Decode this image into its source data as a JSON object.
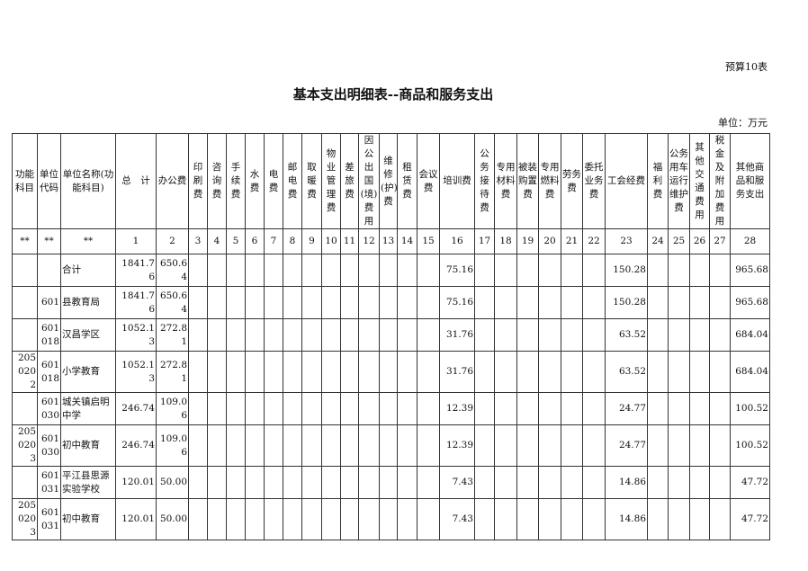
{
  "doc": {
    "tag": "预算10表",
    "title": "基本支出明细表--商品和服务支出",
    "unit": "单位：万元"
  },
  "table": {
    "headers": [
      "功能科目",
      "单位代码",
      "单位名称(功能科目)",
      "总　计",
      "办公费",
      "印刷费",
      "咨询费",
      "手续费",
      "水费",
      "电费",
      "邮电费",
      "取暖费",
      "物业管理费",
      "差旅费",
      "因公出国(境)费用",
      "维修(护)费",
      "租赁费",
      "会议费",
      "培训费",
      "公务接待费",
      "专用材料费",
      "被装购置费",
      "专用燃料费",
      "劳务费",
      "委托业务费",
      "工会经费",
      "福利费",
      "公务用车运行维护费",
      "其他交通费用",
      "税金及附加费用",
      "其他商品和服务支出"
    ],
    "numbers": [
      "**",
      "**",
      "**",
      "1",
      "2",
      "3",
      "4",
      "5",
      "6",
      "7",
      "8",
      "9",
      "10",
      "11",
      "12",
      "13",
      "14",
      "15",
      "16",
      "17",
      "18",
      "19",
      "20",
      "21",
      "22",
      "23",
      "24",
      "25",
      "26",
      "27",
      "28"
    ],
    "rows": [
      {
        "func": "",
        "code": "",
        "name": "合计",
        "total": "1841.76",
        "office": "650.64",
        "training": "75.16",
        "union": "150.28",
        "other": "965.68"
      },
      {
        "func": "",
        "code": "601",
        "name": "县教育局",
        "total": "1841.76",
        "office": "650.64",
        "training": "75.16",
        "union": "150.28",
        "other": "965.68"
      },
      {
        "func": "",
        "code": "601018",
        "name": "汉昌学区",
        "total": "1052.13",
        "office": "272.81",
        "training": "31.76",
        "union": "63.52",
        "other": "684.04"
      },
      {
        "func": "2050202",
        "code": "601018",
        "name": "小学教育",
        "total": "1052.13",
        "office": "272.81",
        "training": "31.76",
        "union": "63.52",
        "other": "684.04"
      },
      {
        "func": "",
        "code": "601030",
        "name": "城关镇启明中学",
        "total": "246.74",
        "office": "109.06",
        "training": "12.39",
        "union": "24.77",
        "other": "100.52"
      },
      {
        "func": "2050203",
        "code": "601030",
        "name": "初中教育",
        "total": "246.74",
        "office": "109.06",
        "training": "12.39",
        "union": "24.77",
        "other": "100.52"
      },
      {
        "func": "",
        "code": "601031",
        "name": "平江县思源实验学校",
        "total": "120.01",
        "office": "50.00",
        "training": "7.43",
        "union": "14.86",
        "other": "47.72"
      },
      {
        "func": "2050203",
        "code": "601031",
        "name": "初中教育",
        "total": "120.01",
        "office": "50.00",
        "training": "7.43",
        "union": "14.86",
        "other": "47.72"
      }
    ]
  }
}
